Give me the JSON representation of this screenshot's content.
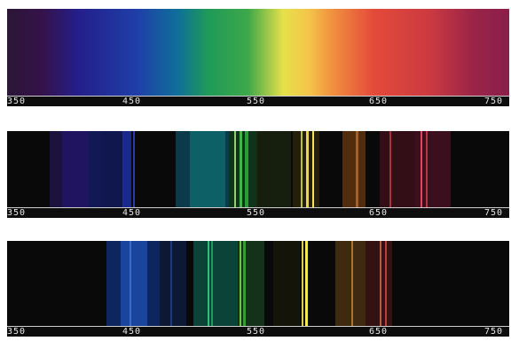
{
  "panels": [
    {
      "type": "continuous",
      "ticks": [
        "350",
        "450",
        "550",
        "650",
        "750"
      ]
    },
    {
      "type": "emission",
      "ticks": [
        "350",
        "450",
        "550",
        "650",
        "750"
      ]
    },
    {
      "type": "emission",
      "ticks": [
        "350",
        "450",
        "550",
        "650",
        "750"
      ]
    }
  ],
  "colors": {
    "violet": "#3b1c5a",
    "blue": "#1d2f9c",
    "cyan": "#0e8f9a",
    "green": "#2aa13c",
    "yellow": "#f2e14a",
    "orange": "#e88a2a",
    "red": "#d8403a",
    "crimson": "#8a1e3c"
  }
}
